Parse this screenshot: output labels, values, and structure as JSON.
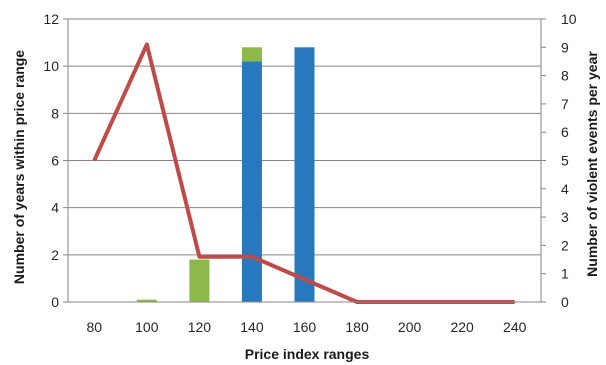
{
  "chart_data": {
    "type": "bar",
    "x_label": "Price index ranges",
    "y_left_label": "Number of years within price range",
    "y_right_label": "Number of violent events per year",
    "categories": [
      "80",
      "100",
      "120",
      "140",
      "160",
      "180",
      "200",
      "220",
      "240"
    ],
    "y_left_range": [
      0,
      12
    ],
    "y_left_ticks": [
      "0",
      "2",
      "4",
      "6",
      "8",
      "10",
      "12"
    ],
    "y_right_range": [
      0,
      10
    ],
    "y_right_ticks": [
      "0",
      "1",
      "2",
      "3",
      "4",
      "5",
      "6",
      "7",
      "8",
      "9",
      "10"
    ],
    "grid": true,
    "legend": "none",
    "bar_series": [
      {
        "color": "#2878BE",
        "values": [
          0,
          0,
          0,
          10.2,
          10.8,
          0,
          0,
          0,
          0
        ]
      },
      {
        "color": "#8DB94B",
        "values": [
          0,
          0.1,
          1.8,
          0.6,
          0,
          0,
          0,
          0,
          0
        ]
      }
    ],
    "line_series": [
      {
        "color": "#BE4B48",
        "axis": "right",
        "values": [
          5,
          9.1,
          1.6,
          1.6,
          0.8,
          0,
          0,
          0,
          0
        ]
      }
    ]
  }
}
